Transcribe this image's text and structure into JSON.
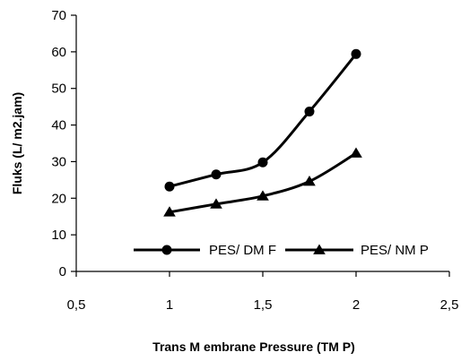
{
  "chart_data": {
    "type": "line",
    "title": "",
    "xlabel": "Trans M embrane Pressure (TM P)",
    "ylabel": "Fluks (L/ m2.jam)",
    "xlim": [
      0.5,
      2.5
    ],
    "ylim": [
      0,
      70
    ],
    "xticks": [
      0.5,
      1,
      1.5,
      2,
      2.5
    ],
    "xtick_labels": [
      "0,5",
      "1",
      "1,5",
      "2",
      "2,5"
    ],
    "yticks": [
      0,
      10,
      20,
      30,
      40,
      50,
      60,
      70
    ],
    "ytick_labels": [
      "0",
      "10",
      "20",
      "30",
      "40",
      "50",
      "60",
      "70"
    ],
    "grid": false,
    "legend_position": "bottom-inside",
    "series": [
      {
        "name": "PES/ DM F",
        "marker": "circle",
        "color": "#000000",
        "x": [
          1,
          1.25,
          1.5,
          1.75,
          2
        ],
        "y": [
          23.2,
          26.5,
          29.8,
          43.7,
          59.4
        ]
      },
      {
        "name": "PES/ NM P",
        "marker": "triangle",
        "color": "#000000",
        "x": [
          1,
          1.25,
          1.5,
          1.75,
          2
        ],
        "y": [
          16.2,
          18.4,
          20.6,
          24.6,
          32.3
        ]
      }
    ]
  }
}
